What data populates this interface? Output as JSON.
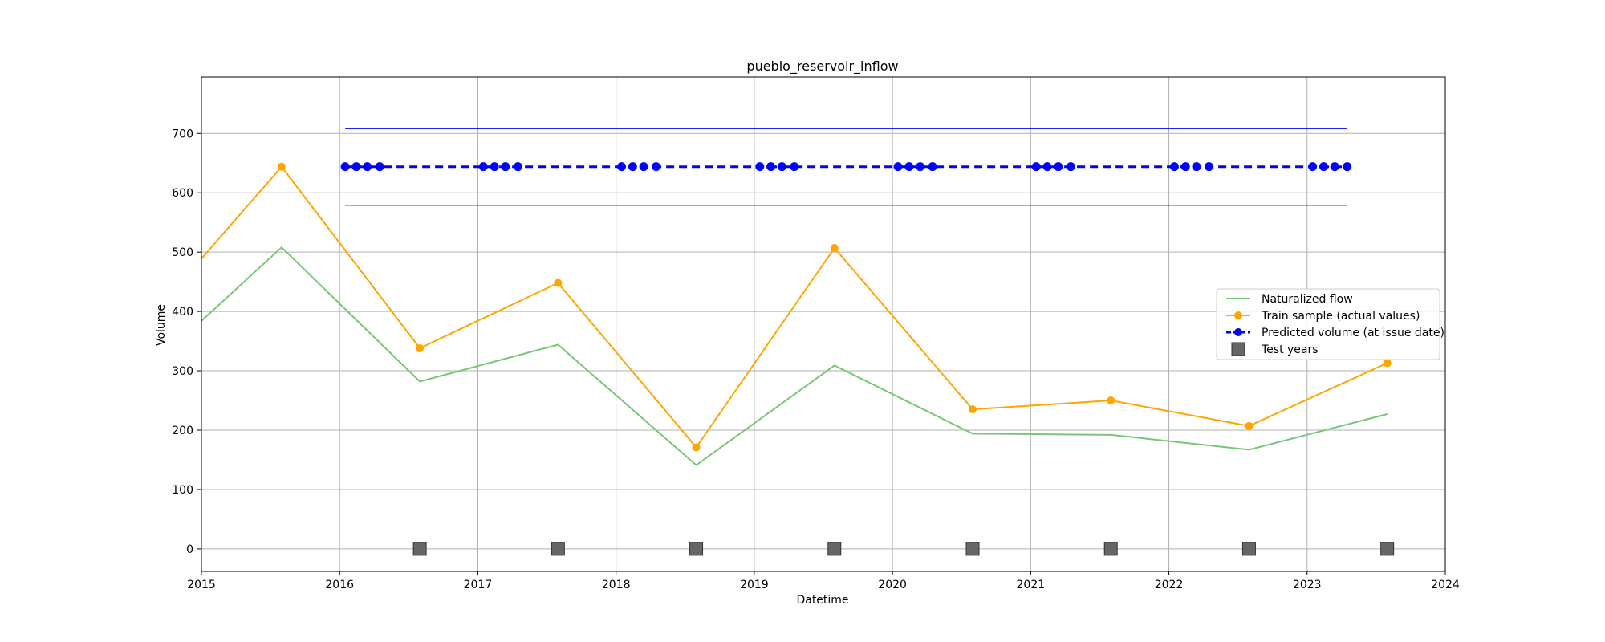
{
  "chart_data": {
    "type": "line",
    "title": "pueblo_reservoir_inflow",
    "xlabel": "Datetime",
    "ylabel": "Volume",
    "xlim": [
      2015.0,
      2024.0
    ],
    "ylim": [
      -38,
      795
    ],
    "x_ticks": [
      2015,
      2016,
      2017,
      2018,
      2019,
      2020,
      2021,
      2022,
      2023,
      2024
    ],
    "x_tick_labels": [
      "2015",
      "2016",
      "2017",
      "2018",
      "2019",
      "2020",
      "2021",
      "2022",
      "2023",
      "2024"
    ],
    "y_ticks": [
      0,
      100,
      200,
      300,
      400,
      500,
      600,
      700
    ],
    "y_tick_labels": [
      "0",
      "100",
      "200",
      "300",
      "400",
      "500",
      "600",
      "700"
    ],
    "grid": true,
    "legend_position": "center-right",
    "series": [
      {
        "name": "Naturalized flow",
        "style": "line",
        "color": "#77c777",
        "x": [
          2015.0,
          2015.58,
          2016.58,
          2017.58,
          2018.58,
          2019.58,
          2020.58,
          2021.58,
          2022.58,
          2023.58
        ],
        "y": [
          384,
          508,
          282,
          344,
          141,
          309,
          194,
          192,
          167,
          227
        ]
      },
      {
        "name": "Train sample (actual values)",
        "style": "line-marker",
        "color": "#ffa500",
        "x": [
          2015.0,
          2015.58,
          2016.58,
          2017.58,
          2018.58,
          2019.58,
          2020.58,
          2021.58,
          2022.58,
          2023.58
        ],
        "y": [
          489,
          644,
          338,
          448,
          171,
          507,
          235,
          250,
          207,
          313
        ],
        "markers_from_index": 1
      },
      {
        "name": "Predicted volume (at issue date)",
        "style": "dashed-marker",
        "color": "#0000ff",
        "x": [
          2016.04,
          2016.12,
          2016.2,
          2016.29,
          2017.04,
          2017.12,
          2017.2,
          2017.29,
          2018.04,
          2018.12,
          2018.2,
          2018.29,
          2019.04,
          2019.12,
          2019.2,
          2019.29,
          2020.04,
          2020.12,
          2020.2,
          2020.29,
          2021.04,
          2021.12,
          2021.2,
          2021.29,
          2022.04,
          2022.12,
          2022.2,
          2022.29,
          2023.04,
          2023.12,
          2023.2,
          2023.29
        ],
        "y": [
          644,
          644,
          644,
          644,
          644,
          644,
          644,
          644,
          644,
          644,
          644,
          644,
          644,
          644,
          644,
          644,
          644,
          644,
          644,
          644,
          644,
          644,
          644,
          644,
          644,
          644,
          644,
          644,
          644,
          644,
          644,
          644
        ]
      },
      {
        "name": "Test years",
        "style": "square-marker",
        "color": "#666666",
        "x": [
          2016.58,
          2017.58,
          2018.58,
          2019.58,
          2020.58,
          2021.58,
          2022.58,
          2023.58
        ],
        "y": [
          0,
          0,
          0,
          0,
          0,
          0,
          0,
          0
        ]
      }
    ],
    "interval_lines": [
      {
        "color": "#0000ff",
        "x": [
          2016.04,
          2023.29
        ],
        "y": 708
      },
      {
        "color": "#0000ff",
        "x": [
          2016.04,
          2023.29
        ],
        "y": 579
      }
    ]
  }
}
